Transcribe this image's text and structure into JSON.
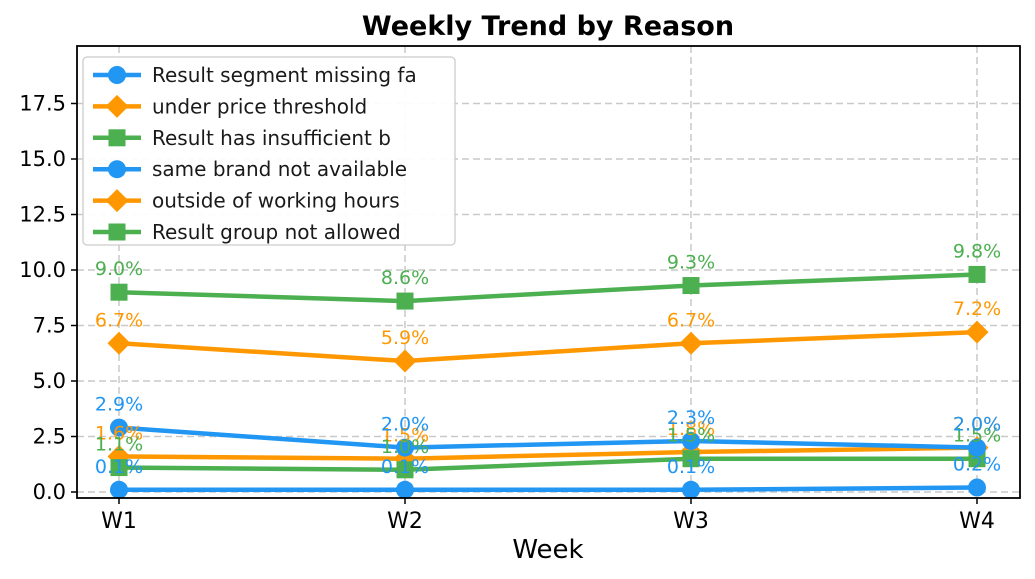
{
  "chart_data": {
    "type": "line",
    "title": "Weekly Trend by Reason",
    "xlabel": "Week",
    "ylabel": "",
    "categories": [
      "W1",
      "W2",
      "W3",
      "W4"
    ],
    "yticks": [
      0.0,
      2.5,
      5.0,
      7.5,
      10.0,
      12.5,
      15.0,
      17.5
    ],
    "ylim": [
      -0.3,
      20.1
    ],
    "grid": true,
    "grid_style": "dashed",
    "legend_position": "upper-left",
    "series": [
      {
        "name": "Result segment missing fa",
        "color": "#2196F3",
        "marker": "circle",
        "values": [
          0.1,
          0.1,
          0.1,
          0.2
        ],
        "labels": [
          "0.1%",
          "0.1%",
          "0.1%",
          "0.2%"
        ]
      },
      {
        "name": "under price threshold",
        "color": "#FF9800",
        "marker": "diamond",
        "values": [
          1.6,
          1.5,
          1.8,
          2.0
        ],
        "labels": [
          "1.6%",
          "1.5%",
          "1.8%",
          "2.0%"
        ]
      },
      {
        "name": "Result has insufficient b",
        "color": "#4CAF50",
        "marker": "square",
        "values": [
          1.1,
          1.0,
          1.5,
          1.5
        ],
        "labels": [
          "1.1%",
          "1.0%",
          "1.5%",
          "1.5%"
        ]
      },
      {
        "name": "same brand not available",
        "color": "#2196F3",
        "marker": "circle",
        "values": [
          2.9,
          2.0,
          2.3,
          2.0
        ],
        "labels": [
          "2.9%",
          "2.0%",
          "2.3%",
          "2.0%"
        ]
      },
      {
        "name": "outside of working hours",
        "color": "#FF9800",
        "marker": "diamond",
        "values": [
          6.7,
          5.9,
          6.7,
          7.2
        ],
        "labels": [
          "6.7%",
          "5.9%",
          "6.7%",
          "7.2%"
        ]
      },
      {
        "name": "Result group not allowed",
        "color": "#4CAF50",
        "marker": "square",
        "values": [
          9.0,
          8.6,
          9.3,
          9.8
        ],
        "labels": [
          "9.0%",
          "8.6%",
          "9.3%",
          "9.8%"
        ]
      }
    ],
    "style": {
      "background": "#ffffff",
      "grid_color": "#c9c9c9",
      "axis_color": "#000000",
      "legend_border": "#cccccc",
      "legend_fill": "#ffffff"
    }
  }
}
